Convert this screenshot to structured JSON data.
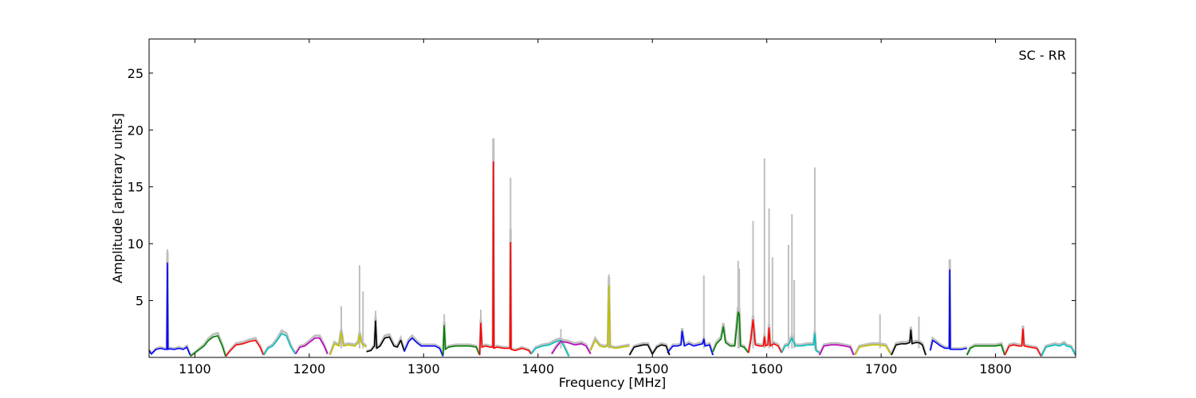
{
  "chart_data": {
    "type": "line",
    "title": "",
    "xlabel": "Frequency [MHz]",
    "ylabel": "Amplitude [arbitrary units]",
    "annotation": "SC - RR",
    "xlim": [
      1060,
      1870
    ],
    "ylim": [
      0,
      28
    ],
    "xticks": [
      1100,
      1200,
      1300,
      1400,
      1500,
      1600,
      1700,
      1800
    ],
    "yticks": [
      5,
      10,
      15,
      20,
      25
    ],
    "xtick_labels": [
      "1100",
      "1200",
      "1300",
      "1400",
      "1500",
      "1600",
      "1700",
      "1800"
    ],
    "ytick_labels": [
      "5",
      "10",
      "15",
      "20",
      "25"
    ],
    "grid": false,
    "legend": "none",
    "background_series": {
      "color": "#bfbfbf",
      "description_peaks": [
        {
          "x": 1076,
          "y": 9.5
        },
        {
          "x": 1228,
          "y": 4.5
        },
        {
          "x": 1244,
          "y": 8.1
        },
        {
          "x": 1247,
          "y": 5.8
        },
        {
          "x": 1258,
          "y": 4.1
        },
        {
          "x": 1318,
          "y": 3.8
        },
        {
          "x": 1350,
          "y": 4.2
        },
        {
          "x": 1361,
          "y": 17.5
        },
        {
          "x": 1376,
          "y": 15.8
        },
        {
          "x": 1420,
          "y": 2.5
        },
        {
          "x": 1462,
          "y": 7.3
        },
        {
          "x": 1545,
          "y": 7.2
        },
        {
          "x": 1575,
          "y": 8.5
        },
        {
          "x": 1576,
          "y": 7.8
        },
        {
          "x": 1588,
          "y": 12.0
        },
        {
          "x": 1598,
          "y": 17.5
        },
        {
          "x": 1602,
          "y": 13.1
        },
        {
          "x": 1605,
          "y": 8.8
        },
        {
          "x": 1619,
          "y": 9.9
        },
        {
          "x": 1622,
          "y": 12.6
        },
        {
          "x": 1624,
          "y": 6.8
        },
        {
          "x": 1642,
          "y": 16.7
        },
        {
          "x": 1699,
          "y": 3.8
        },
        {
          "x": 1733,
          "y": 3.6
        },
        {
          "x": 1760,
          "y": 8.0
        }
      ]
    },
    "series": [
      {
        "color": "#0000ff",
        "x": [
          1060,
          1062,
          1066,
          1070,
          1074,
          1075.5,
          1076,
          1076.5,
          1078,
          1082,
          1086,
          1090,
          1093,
          1096
        ],
        "y": [
          0.6,
          0.3,
          0.7,
          0.8,
          0.7,
          0.7,
          8.3,
          0.7,
          0.75,
          0.7,
          0.8,
          0.7,
          0.9,
          0.2
        ]
      },
      {
        "color": "#008000",
        "x": [
          1096,
          1100,
          1108,
          1112,
          1116,
          1120,
          1124,
          1127
        ],
        "y": [
          0.1,
          0.4,
          1.0,
          1.5,
          1.8,
          1.9,
          1.0,
          0.1
        ]
      },
      {
        "color": "#ff0000",
        "x": [
          1127,
          1131,
          1136,
          1142,
          1148,
          1153,
          1157,
          1160
        ],
        "y": [
          0.1,
          0.6,
          1.1,
          1.2,
          1.4,
          1.5,
          0.9,
          0.2
        ]
      },
      {
        "color": "#00bfbf",
        "x": [
          1160,
          1164,
          1168,
          1172,
          1176,
          1180,
          1184,
          1188
        ],
        "y": [
          0.2,
          0.8,
          1.0,
          1.5,
          2.1,
          1.9,
          0.9,
          0.3
        ]
      },
      {
        "color": "#bf00bf",
        "x": [
          1188,
          1192,
          1196,
          1200,
          1205,
          1209,
          1213,
          1216
        ],
        "y": [
          0.3,
          0.9,
          1.0,
          1.3,
          1.7,
          1.7,
          1.0,
          0.3
        ]
      },
      {
        "color": "#bfbf00",
        "x": [
          1218,
          1222,
          1226,
          1228,
          1230,
          1234,
          1240,
          1243,
          1244,
          1246,
          1250
        ],
        "y": [
          0.2,
          1.2,
          1.0,
          2.2,
          1.0,
          1.1,
          1.0,
          1.3,
          2.0,
          1.2,
          0.9
        ]
      },
      {
        "color": "#000000",
        "x": [
          1250,
          1254,
          1257,
          1258,
          1259,
          1262,
          1266,
          1270,
          1274,
          1277,
          1280,
          1283
        ],
        "y": [
          0.5,
          0.6,
          1.0,
          3.2,
          0.8,
          1.0,
          1.7,
          1.8,
          1.0,
          0.9,
          1.5,
          0.6
        ]
      },
      {
        "color": "#0000ff",
        "x": [
          1283,
          1287,
          1290,
          1294,
          1298,
          1304,
          1310,
          1314,
          1317
        ],
        "y": [
          0.5,
          1.4,
          1.7,
          1.3,
          1.0,
          1.0,
          1.0,
          0.8,
          0.1
        ]
      },
      {
        "color": "#008000",
        "x": [
          1317,
          1318,
          1319,
          1322,
          1328,
          1334,
          1340,
          1346,
          1349
        ],
        "y": [
          0.2,
          2.8,
          0.7,
          0.9,
          1.0,
          1.0,
          1.0,
          0.9,
          0.2
        ]
      },
      {
        "color": "#ff0000",
        "x": [
          1349,
          1350,
          1351,
          1354,
          1358,
          1360.5,
          1361,
          1361.5,
          1364,
          1370,
          1375.5,
          1376,
          1376.5,
          1380,
          1386,
          1392,
          1394
        ],
        "y": [
          0.2,
          3.0,
          0.9,
          1.0,
          0.9,
          0.9,
          17.2,
          0.8,
          0.9,
          0.8,
          0.8,
          10.1,
          0.7,
          0.6,
          0.8,
          0.6,
          0.3
        ]
      },
      {
        "color": "#00bfbf",
        "x": [
          1394,
          1398,
          1404,
          1410,
          1416,
          1420,
          1424,
          1427
        ],
        "y": [
          0.3,
          0.8,
          1.0,
          1.1,
          1.4,
          1.5,
          0.7,
          0.1
        ]
      },
      {
        "color": "#bf00bf",
        "x": [
          1412,
          1416,
          1420,
          1426,
          1432,
          1438,
          1442,
          1446
        ],
        "y": [
          0.3,
          0.9,
          1.4,
          1.3,
          1.1,
          1.2,
          1.0,
          0.3
        ]
      },
      {
        "color": "#bfbf00",
        "x": [
          1446,
          1450,
          1454,
          1458,
          1461,
          1462,
          1463,
          1468,
          1474,
          1480
        ],
        "y": [
          0.6,
          1.5,
          1.0,
          0.9,
          1.0,
          6.3,
          0.9,
          0.8,
          0.9,
          1.0
        ]
      },
      {
        "color": "#000000",
        "x": [
          1480,
          1484,
          1488,
          1492,
          1496,
          1500,
          1504,
          1508,
          1512,
          1515
        ],
        "y": [
          0.2,
          0.9,
          1.0,
          1.1,
          1.1,
          0.3,
          0.9,
          1.1,
          1.0,
          0.2
        ]
      },
      {
        "color": "#0000ff",
        "x": [
          1513,
          1518,
          1522,
          1525,
          1526,
          1528,
          1532,
          1536,
          1540,
          1544,
          1545,
          1546,
          1550,
          1553
        ],
        "y": [
          0.4,
          1.0,
          1.0,
          1.1,
          2.3,
          1.0,
          1.2,
          1.0,
          1.1,
          1.2,
          1.6,
          1.0,
          1.1,
          0.2
        ]
      },
      {
        "color": "#008000",
        "x": [
          1553,
          1556,
          1560,
          1562,
          1564,
          1568,
          1572,
          1575,
          1576,
          1577,
          1580,
          1584
        ],
        "y": [
          0.5,
          1.2,
          1.6,
          2.7,
          1.3,
          1.0,
          1.0,
          4.0,
          3.8,
          1.0,
          0.9,
          0.4
        ]
      },
      {
        "color": "#ff0000",
        "x": [
          1584,
          1586,
          1588,
          1590,
          1594,
          1597,
          1598,
          1599,
          1601,
          1602,
          1603,
          1606,
          1610,
          1613
        ],
        "y": [
          0.4,
          1.5,
          3.3,
          1.1,
          1.0,
          1.0,
          1.8,
          1.0,
          1.1,
          2.6,
          1.0,
          1.2,
          1.0,
          0.4
        ]
      },
      {
        "color": "#00bfbf",
        "x": [
          1613,
          1616,
          1619,
          1622,
          1625,
          1630,
          1636,
          1641,
          1642,
          1643,
          1646
        ],
        "y": [
          0.4,
          1.0,
          1.1,
          1.7,
          1.0,
          1.0,
          1.1,
          1.1,
          2.1,
          0.6,
          0.4
        ]
      },
      {
        "color": "#bf00bf",
        "x": [
          1646,
          1650,
          1656,
          1662,
          1668,
          1673,
          1676
        ],
        "y": [
          0.2,
          1.0,
          1.1,
          1.1,
          1.0,
          0.9,
          0.2
        ]
      },
      {
        "color": "#bfbf00",
        "x": [
          1677,
          1681,
          1686,
          1692,
          1698,
          1704,
          1709
        ],
        "y": [
          0.2,
          0.9,
          1.0,
          1.1,
          1.1,
          1.0,
          0.2
        ]
      },
      {
        "color": "#000000",
        "x": [
          1709,
          1713,
          1718,
          1722,
          1725,
          1726,
          1727,
          1730,
          1733,
          1736,
          1739
        ],
        "y": [
          0.2,
          1.1,
          1.2,
          1.2,
          1.3,
          2.4,
          1.2,
          1.3,
          1.3,
          1.1,
          0.2
        ]
      },
      {
        "color": "#0000ff",
        "x": [
          1743,
          1745,
          1748,
          1752,
          1756,
          1759.5,
          1760,
          1760.5,
          1764,
          1770,
          1775
        ],
        "y": [
          0.6,
          1.5,
          1.3,
          1.0,
          0.8,
          0.8,
          7.7,
          0.7,
          0.7,
          0.7,
          0.8
        ]
      },
      {
        "color": "#008000",
        "x": [
          1775,
          1778,
          1782,
          1788,
          1794,
          1800,
          1805,
          1808
        ],
        "y": [
          0.2,
          0.8,
          1.0,
          1.0,
          1.0,
          1.0,
          1.1,
          0.2
        ]
      },
      {
        "color": "#ff0000",
        "x": [
          1808,
          1812,
          1816,
          1820,
          1823,
          1824,
          1825,
          1830,
          1836,
          1840
        ],
        "y": [
          0.2,
          1.0,
          1.1,
          1.0,
          1.0,
          2.5,
          1.0,
          0.9,
          0.8,
          0.1
        ]
      },
      {
        "color": "#00bfbf",
        "x": [
          1840,
          1844,
          1848,
          1852,
          1856,
          1860,
          1862,
          1866,
          1870
        ],
        "y": [
          0.1,
          0.9,
          1.0,
          1.1,
          1.0,
          1.2,
          1.0,
          0.9,
          0.2
        ]
      }
    ]
  }
}
